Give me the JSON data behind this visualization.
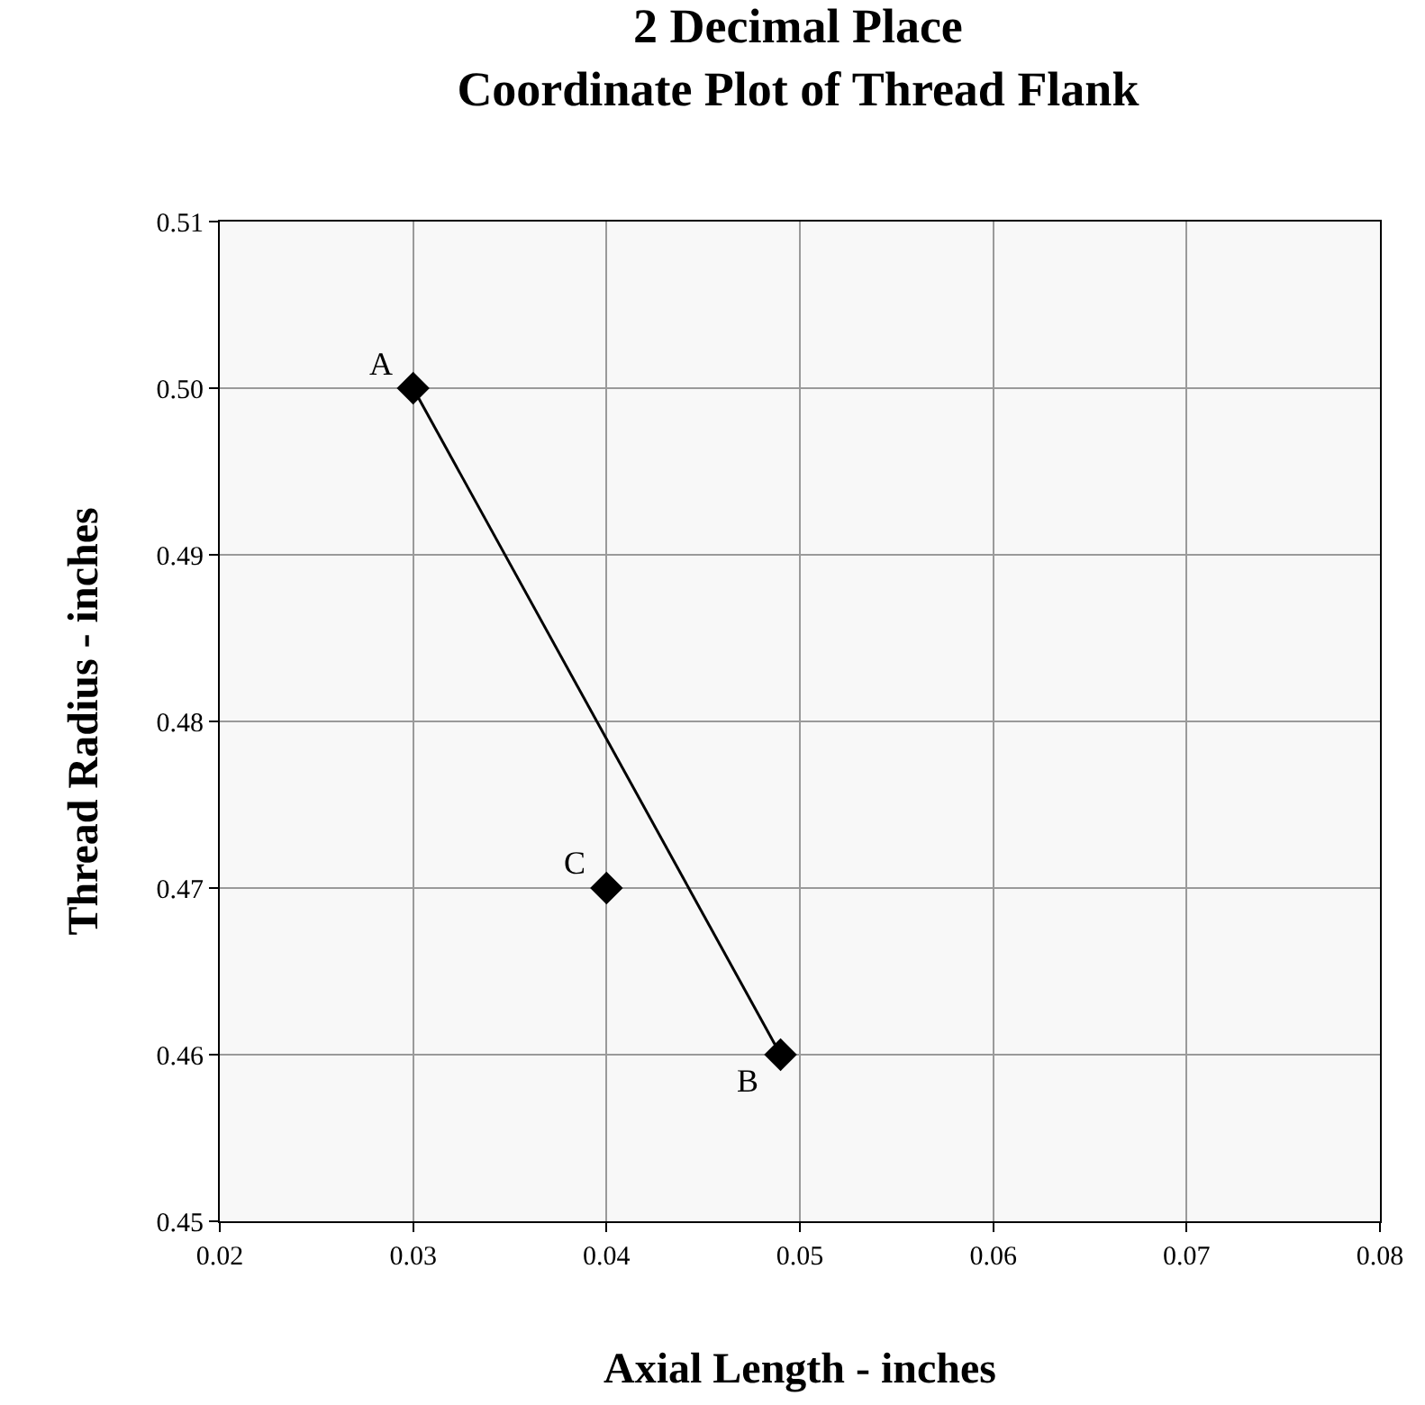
{
  "chart_data": {
    "type": "scatter",
    "title": "2 Decimal Place\nCoordinate Plot of Thread Flank",
    "xlabel": "Axial Length - inches",
    "ylabel": "Thread Radius - inches",
    "series": [
      {
        "type": "line",
        "color": "#000000",
        "x": [
          0.03,
          0.049
        ],
        "values": [
          0.5,
          0.46
        ]
      },
      {
        "color": "#000000",
        "x": [
          0.04
        ],
        "values": [
          0.47
        ]
      }
    ],
    "annotations": [
      {
        "text": "A",
        "x": 0.03,
        "y": 0.5
      },
      {
        "text": "B",
        "x": 0.049,
        "y": 0.46
      },
      {
        "text": "C",
        "x": 0.04,
        "y": 0.47
      }
    ],
    "xlim": [
      0.02,
      0.08
    ],
    "xticks": [
      0.02,
      0.03,
      0.04,
      0.05,
      0.06,
      0.07,
      0.08
    ],
    "ylim": [
      0.45,
      0.51
    ],
    "yticks": [
      0.45,
      0.46,
      0.47,
      0.48,
      0.49,
      {
        "value": 0.5,
        "label": "0.50"
      },
      0.51
    ],
    "grid": true,
    "marker": "diamond",
    "line_style": "solid"
  }
}
